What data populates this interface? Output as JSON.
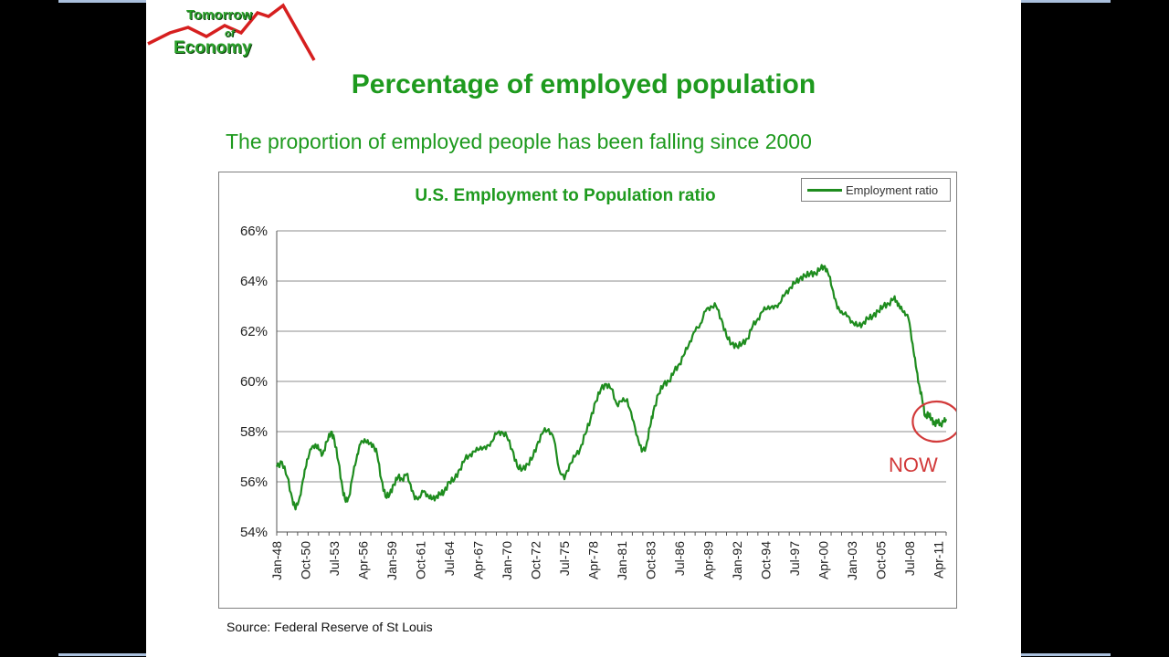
{
  "logo": {
    "line1": "Tomorrow",
    "line2": "of",
    "line3": "Economy"
  },
  "slide": {
    "title": "Percentage of employed population",
    "subtitle": "The proportion of employed people has been falling since 2000",
    "source": "Source: Federal Reserve of St Louis",
    "annotation": "NOW"
  },
  "colors": {
    "title": "#1e9a1e",
    "line": "#1e8c1e",
    "annotation": "#d23a3a"
  },
  "chart_data": {
    "type": "line",
    "title": "U.S. Employment to Population ratio",
    "xlabel": "",
    "ylabel": "",
    "ylim": [
      54,
      66
    ],
    "yticks": [
      "54%",
      "56%",
      "58%",
      "60%",
      "62%",
      "64%",
      "66%"
    ],
    "y_tick_values": [
      54,
      56,
      58,
      60,
      62,
      64,
      66
    ],
    "x_tick_labels": [
      "Jan-48",
      "Oct-50",
      "Jul-53",
      "Apr-56",
      "Jan-59",
      "Oct-61",
      "Jul-64",
      "Apr-67",
      "Jan-70",
      "Oct-72",
      "Jul-75",
      "Apr-78",
      "Jan-81",
      "Oct-83",
      "Jul-86",
      "Apr-89",
      "Jan-92",
      "Oct-94",
      "Jul-97",
      "Apr-00",
      "Jan-03",
      "Oct-05",
      "Jul-08",
      "Apr-11"
    ],
    "x_range": [
      1948.0,
      2012.0
    ],
    "grid": "horizontal",
    "legend_position": "top-right",
    "series": [
      {
        "name": "Employment ratio",
        "points": [
          [
            1948.0,
            56.6
          ],
          [
            1948.5,
            56.8
          ],
          [
            1949.0,
            56.2
          ],
          [
            1949.5,
            55.3
          ],
          [
            1949.8,
            54.9
          ],
          [
            1950.2,
            55.4
          ],
          [
            1950.6,
            56.2
          ],
          [
            1950.9,
            56.9
          ],
          [
            1951.3,
            57.3
          ],
          [
            1951.7,
            57.5
          ],
          [
            1952.0,
            57.3
          ],
          [
            1952.4,
            57.1
          ],
          [
            1952.8,
            57.6
          ],
          [
            1953.2,
            58.0
          ],
          [
            1953.5,
            57.7
          ],
          [
            1953.9,
            56.8
          ],
          [
            1954.3,
            55.7
          ],
          [
            1954.6,
            55.2
          ],
          [
            1954.9,
            55.4
          ],
          [
            1955.3,
            56.3
          ],
          [
            1955.7,
            57.1
          ],
          [
            1956.0,
            57.5
          ],
          [
            1956.4,
            57.7
          ],
          [
            1956.8,
            57.5
          ],
          [
            1957.2,
            57.5
          ],
          [
            1957.6,
            57.1
          ],
          [
            1958.0,
            56.1
          ],
          [
            1958.4,
            55.4
          ],
          [
            1958.8,
            55.5
          ],
          [
            1959.2,
            55.9
          ],
          [
            1959.6,
            56.2
          ],
          [
            1960.0,
            56.1
          ],
          [
            1960.4,
            56.3
          ],
          [
            1960.8,
            55.9
          ],
          [
            1961.2,
            55.3
          ],
          [
            1961.6,
            55.4
          ],
          [
            1962.0,
            55.6
          ],
          [
            1962.4,
            55.5
          ],
          [
            1962.8,
            55.3
          ],
          [
            1963.2,
            55.4
          ],
          [
            1963.6,
            55.5
          ],
          [
            1964.0,
            55.6
          ],
          [
            1964.5,
            56.0
          ],
          [
            1965.0,
            56.1
          ],
          [
            1965.5,
            56.5
          ],
          [
            1966.0,
            56.9
          ],
          [
            1966.5,
            57.1
          ],
          [
            1967.0,
            57.2
          ],
          [
            1967.5,
            57.4
          ],
          [
            1968.0,
            57.3
          ],
          [
            1968.5,
            57.6
          ],
          [
            1969.0,
            57.9
          ],
          [
            1969.5,
            58.0
          ],
          [
            1970.0,
            57.8
          ],
          [
            1970.5,
            57.3
          ],
          [
            1971.0,
            56.6
          ],
          [
            1971.5,
            56.5
          ],
          [
            1972.0,
            56.7
          ],
          [
            1972.5,
            57.0
          ],
          [
            1973.0,
            57.6
          ],
          [
            1973.5,
            58.0
          ],
          [
            1974.0,
            58.1
          ],
          [
            1974.5,
            57.7
          ],
          [
            1975.0,
            56.5
          ],
          [
            1975.5,
            56.1
          ],
          [
            1976.0,
            56.7
          ],
          [
            1976.5,
            57.0
          ],
          [
            1977.0,
            57.3
          ],
          [
            1977.5,
            57.9
          ],
          [
            1978.0,
            58.5
          ],
          [
            1978.5,
            59.2
          ],
          [
            1979.0,
            59.7
          ],
          [
            1979.5,
            59.9
          ],
          [
            1980.0,
            59.7
          ],
          [
            1980.5,
            59.1
          ],
          [
            1981.0,
            59.2
          ],
          [
            1981.5,
            59.3
          ],
          [
            1982.0,
            58.5
          ],
          [
            1982.5,
            57.8
          ],
          [
            1982.9,
            57.2
          ],
          [
            1983.3,
            57.4
          ],
          [
            1983.7,
            58.2
          ],
          [
            1984.0,
            58.8
          ],
          [
            1984.5,
            59.5
          ],
          [
            1985.0,
            59.9
          ],
          [
            1985.5,
            60.0
          ],
          [
            1986.0,
            60.4
          ],
          [
            1986.5,
            60.7
          ],
          [
            1987.0,
            61.1
          ],
          [
            1987.5,
            61.6
          ],
          [
            1988.0,
            62.0
          ],
          [
            1988.5,
            62.3
          ],
          [
            1989.0,
            62.8
          ],
          [
            1989.5,
            63.0
          ],
          [
            1990.0,
            63.0
          ],
          [
            1990.5,
            62.5
          ],
          [
            1991.0,
            61.8
          ],
          [
            1991.5,
            61.5
          ],
          [
            1992.0,
            61.4
          ],
          [
            1992.5,
            61.5
          ],
          [
            1993.0,
            61.7
          ],
          [
            1993.5,
            62.2
          ],
          [
            1994.0,
            62.5
          ],
          [
            1994.5,
            62.8
          ],
          [
            1995.0,
            63.0
          ],
          [
            1995.5,
            62.9
          ],
          [
            1996.0,
            63.1
          ],
          [
            1996.5,
            63.4
          ],
          [
            1997.0,
            63.7
          ],
          [
            1997.5,
            63.9
          ],
          [
            1998.0,
            64.1
          ],
          [
            1998.5,
            64.2
          ],
          [
            1999.0,
            64.3
          ],
          [
            1999.5,
            64.3
          ],
          [
            2000.0,
            64.5
          ],
          [
            2000.4,
            64.6
          ],
          [
            2000.8,
            64.2
          ],
          [
            2001.2,
            63.6
          ],
          [
            2001.6,
            62.9
          ],
          [
            2002.0,
            62.8
          ],
          [
            2002.5,
            62.6
          ],
          [
            2003.0,
            62.4
          ],
          [
            2003.5,
            62.2
          ],
          [
            2004.0,
            62.3
          ],
          [
            2004.5,
            62.5
          ],
          [
            2005.0,
            62.6
          ],
          [
            2005.5,
            62.8
          ],
          [
            2006.0,
            63.0
          ],
          [
            2006.5,
            63.1
          ],
          [
            2007.0,
            63.3
          ],
          [
            2007.3,
            63.2
          ],
          [
            2007.6,
            62.9
          ],
          [
            2008.0,
            62.8
          ],
          [
            2008.4,
            62.5
          ],
          [
            2008.8,
            61.5
          ],
          [
            2009.1,
            60.6
          ],
          [
            2009.4,
            59.9
          ],
          [
            2009.7,
            59.3
          ],
          [
            2010.0,
            58.6
          ],
          [
            2010.3,
            58.7
          ],
          [
            2010.6,
            58.5
          ],
          [
            2010.9,
            58.3
          ],
          [
            2011.2,
            58.4
          ],
          [
            2011.5,
            58.3
          ],
          [
            2011.8,
            58.4
          ],
          [
            2012.0,
            58.5
          ]
        ]
      }
    ]
  }
}
